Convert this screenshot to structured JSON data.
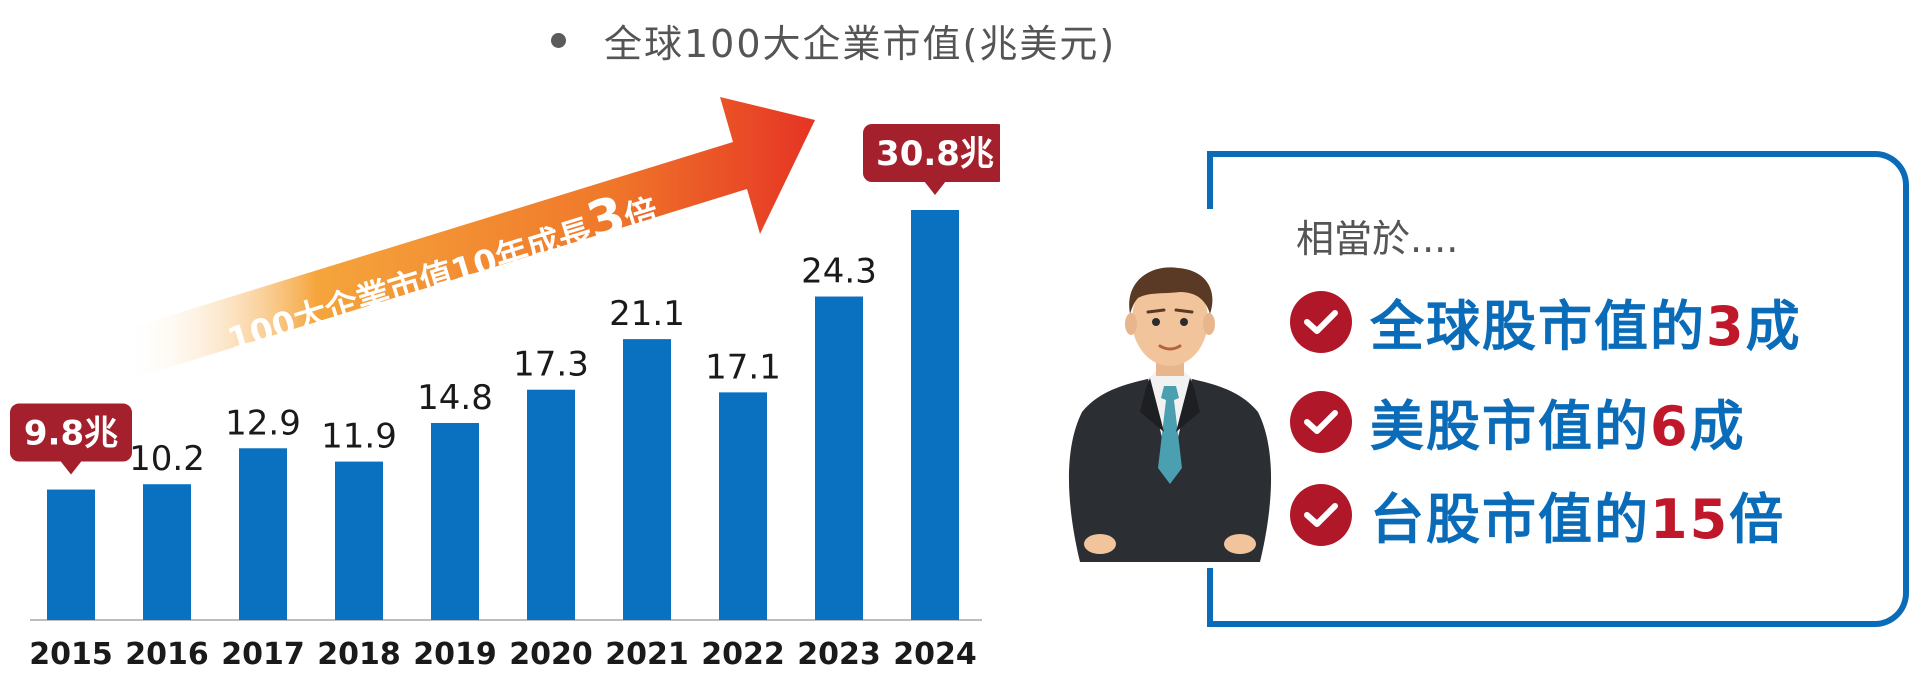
{
  "chart_data": {
    "type": "bar",
    "title": "全球100大企業市值(兆美元)",
    "categories": [
      "2015",
      "2016",
      "2017",
      "2018",
      "2019",
      "2020",
      "2021",
      "2022",
      "2023",
      "2024"
    ],
    "values": [
      9.8,
      10.2,
      12.9,
      11.9,
      14.8,
      17.3,
      21.1,
      17.1,
      24.3,
      30.8
    ],
    "value_labels": [
      "9.8兆",
      "10.2",
      "12.9",
      "11.9",
      "14.8",
      "17.3",
      "21.1",
      "17.1",
      "24.3",
      "30.8兆"
    ],
    "callout_indices": [
      0,
      9
    ],
    "ylim": [
      0,
      30.8
    ],
    "grid": false,
    "colors": {
      "bar": "#0a70c0",
      "callout": "#a3202c"
    },
    "annotation": {
      "text": "100大企業市值10年成長",
      "emphasis": "3",
      "suffix": "倍"
    }
  },
  "panel": {
    "intro": "相當於....",
    "items": [
      {
        "prefix": "全球股市值的",
        "number": "3",
        "suffix": "成"
      },
      {
        "prefix": "美股市值的",
        "number": "6",
        "suffix": "成"
      },
      {
        "prefix": "台股市值的",
        "number": "15",
        "suffix": "倍"
      }
    ],
    "colors": {
      "border": "#0a6cb8",
      "text": "#0a6cb8",
      "number": "#c0182a",
      "check": "#b0182a"
    },
    "icons": {
      "check": "check-circle-icon",
      "person": "businessman-icon"
    }
  }
}
